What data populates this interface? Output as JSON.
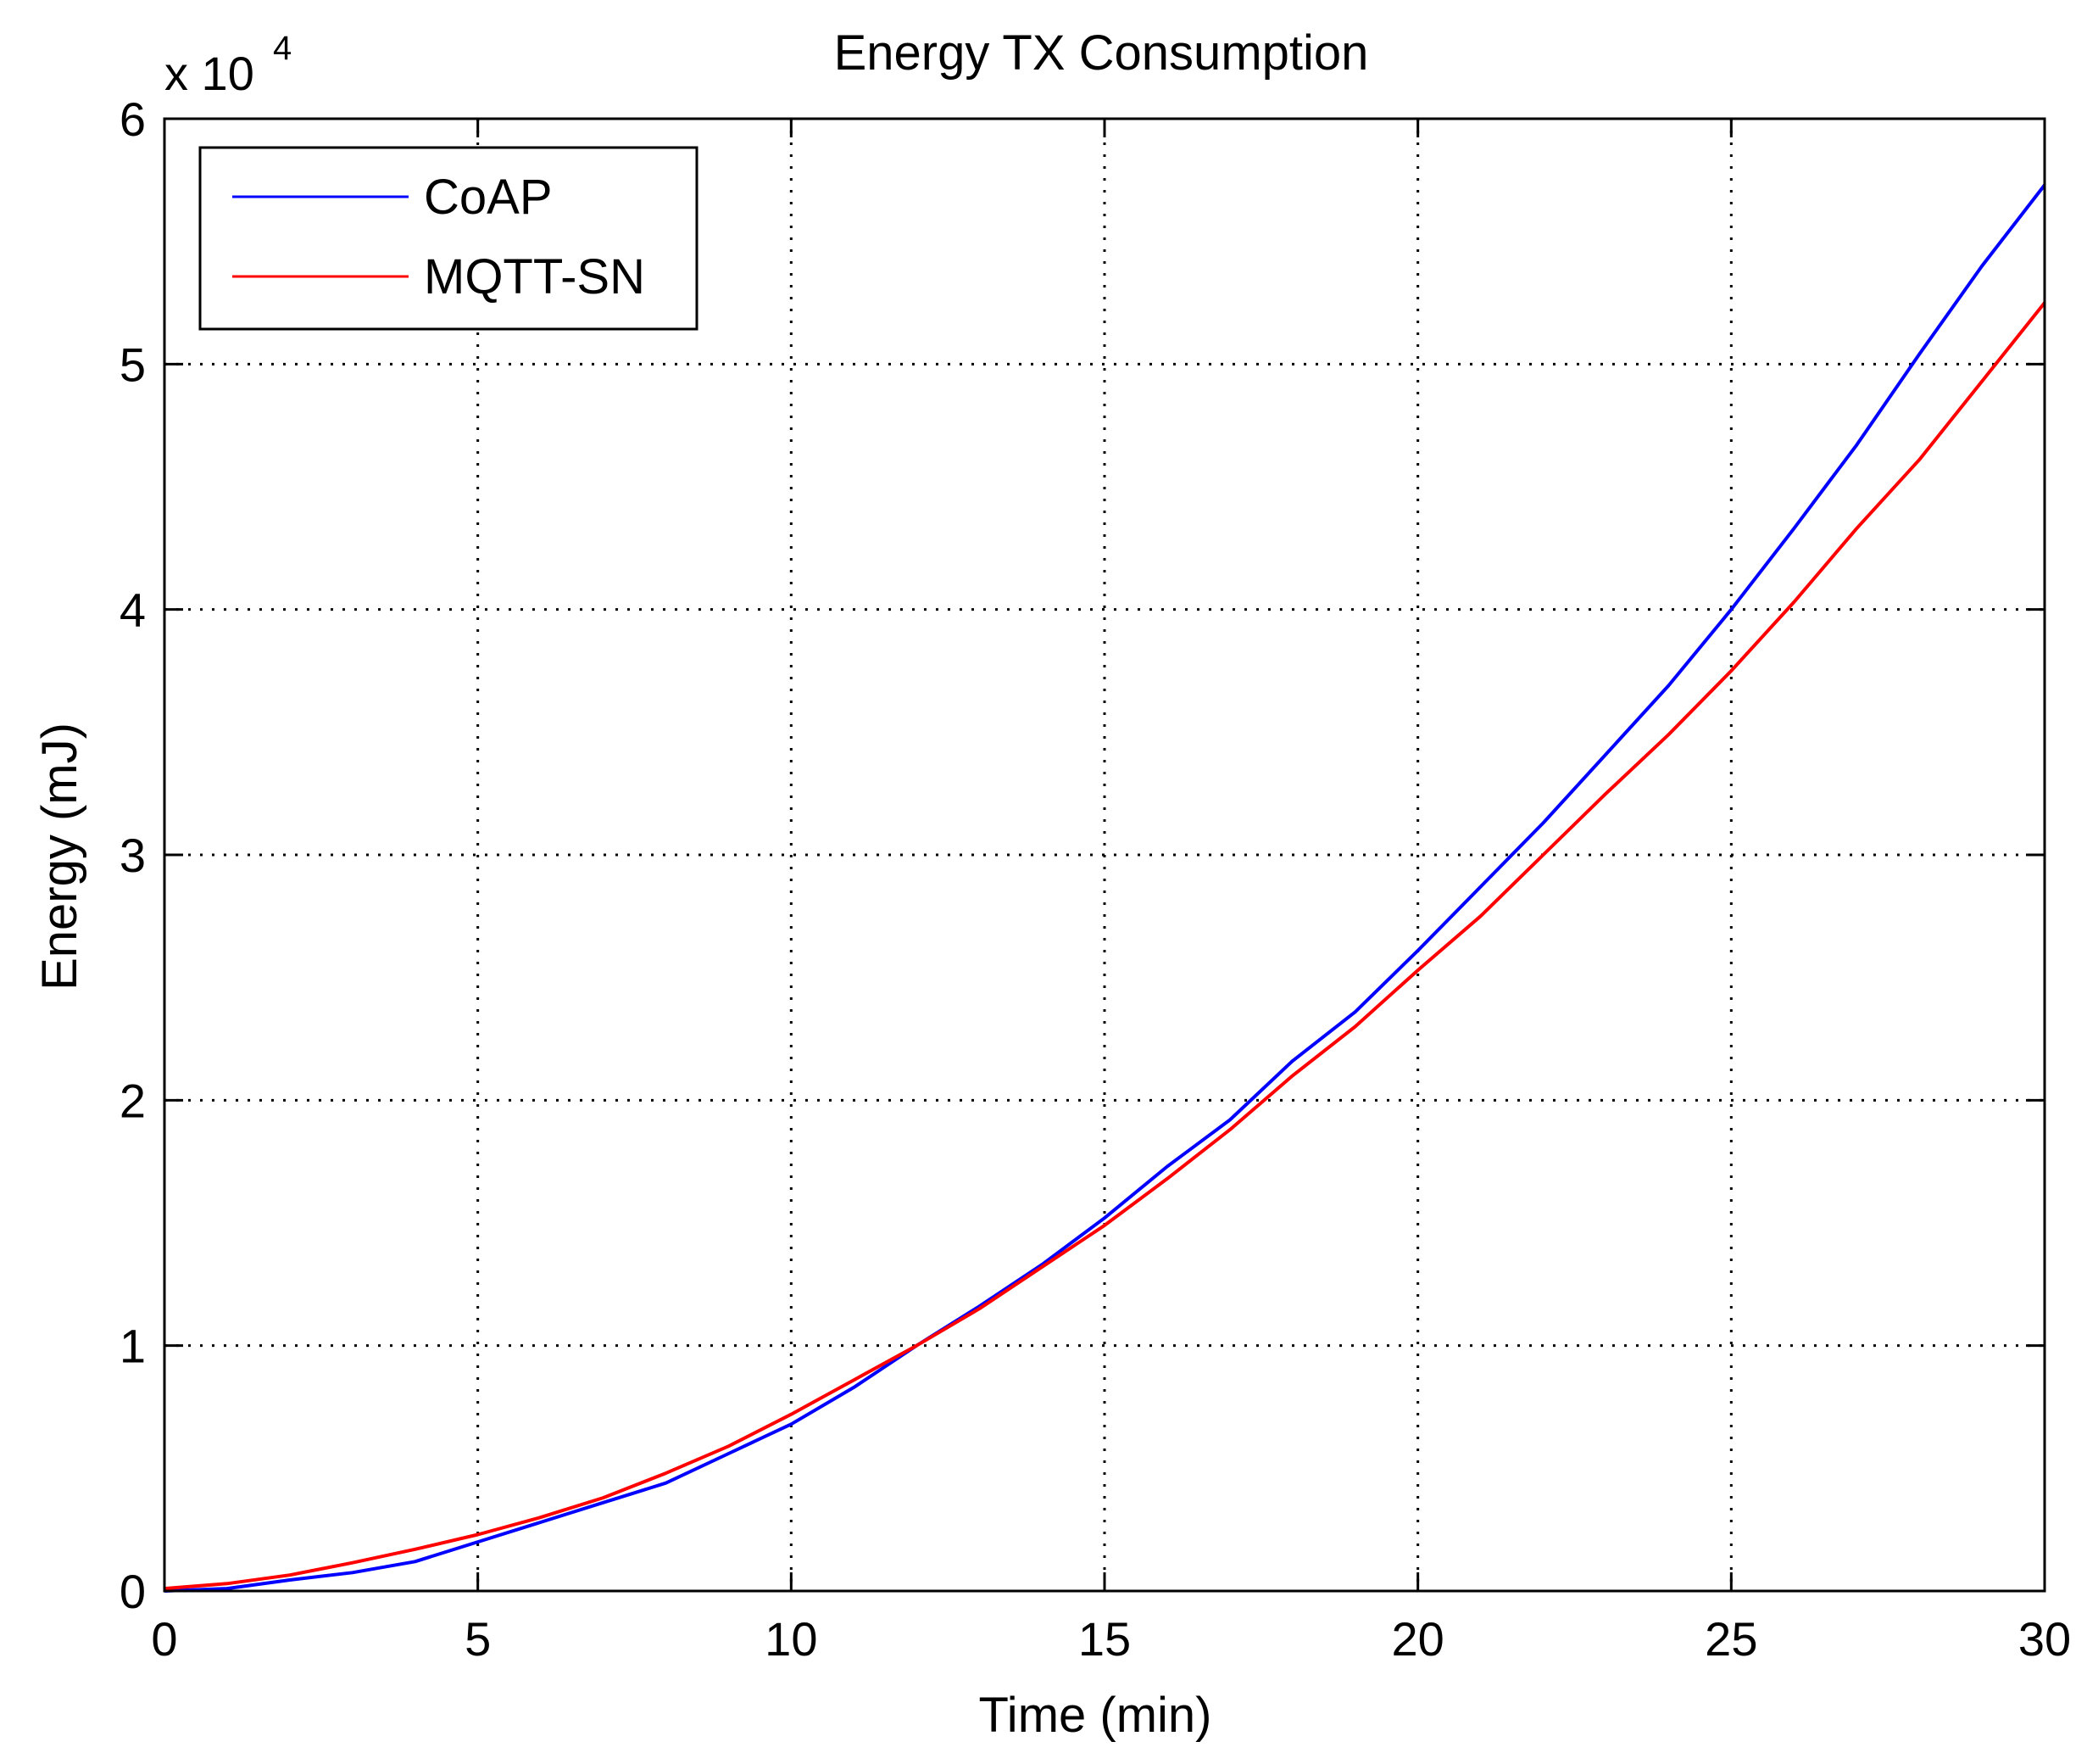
{
  "chart_data": {
    "type": "line",
    "title": "Energy TX Consumption",
    "xlabel": "Time (min)",
    "ylabel": "Energy (mJ)",
    "y_exponent_label": "x 10",
    "y_exponent_power": "4",
    "xlim": [
      0,
      30
    ],
    "ylim": [
      0,
      60000
    ],
    "x_ticks": [
      0,
      5,
      10,
      15,
      20,
      25,
      30
    ],
    "x_tick_labels": [
      "0",
      "5",
      "10",
      "15",
      "20",
      "25",
      "30"
    ],
    "y_ticks": [
      0,
      10000,
      20000,
      30000,
      40000,
      50000,
      60000
    ],
    "y_tick_labels": [
      "0",
      "1",
      "2",
      "3",
      "4",
      "5",
      "6"
    ],
    "grid": true,
    "legend_position": "top-left",
    "series": [
      {
        "name": "CoAP",
        "color": "#0000ff",
        "x": [
          0,
          1,
          2,
          3,
          4,
          5,
          6,
          7,
          8,
          9,
          10,
          11,
          12,
          13,
          14,
          15,
          16,
          17,
          18,
          19,
          20,
          21,
          22,
          23,
          24,
          25,
          26,
          27,
          28,
          29,
          30
        ],
        "y": [
          0,
          100,
          450,
          750,
          1200,
          2000,
          2800,
          3600,
          4400,
          5600,
          6800,
          8300,
          10000,
          11600,
          13300,
          15200,
          17300,
          19200,
          21600,
          23600,
          26100,
          28700,
          31300,
          34100,
          36900,
          40000,
          43300,
          46700,
          50400,
          54000,
          57300
        ]
      },
      {
        "name": "MQTT-SN",
        "color": "#ff0000",
        "x": [
          0,
          1,
          2,
          3,
          4,
          5,
          6,
          7,
          8,
          9,
          10,
          11,
          12,
          13,
          14,
          15,
          16,
          17,
          18,
          19,
          20,
          21,
          22,
          23,
          24,
          25,
          26,
          27,
          28,
          29,
          30
        ],
        "y": [
          100,
          300,
          650,
          1150,
          1700,
          2300,
          3000,
          3800,
          4800,
          5900,
          7200,
          8600,
          10000,
          11500,
          13200,
          14900,
          16800,
          18800,
          21000,
          23000,
          25300,
          27500,
          30000,
          32500,
          34900,
          37500,
          40300,
          43300,
          46100,
          49300,
          52500
        ]
      }
    ]
  }
}
